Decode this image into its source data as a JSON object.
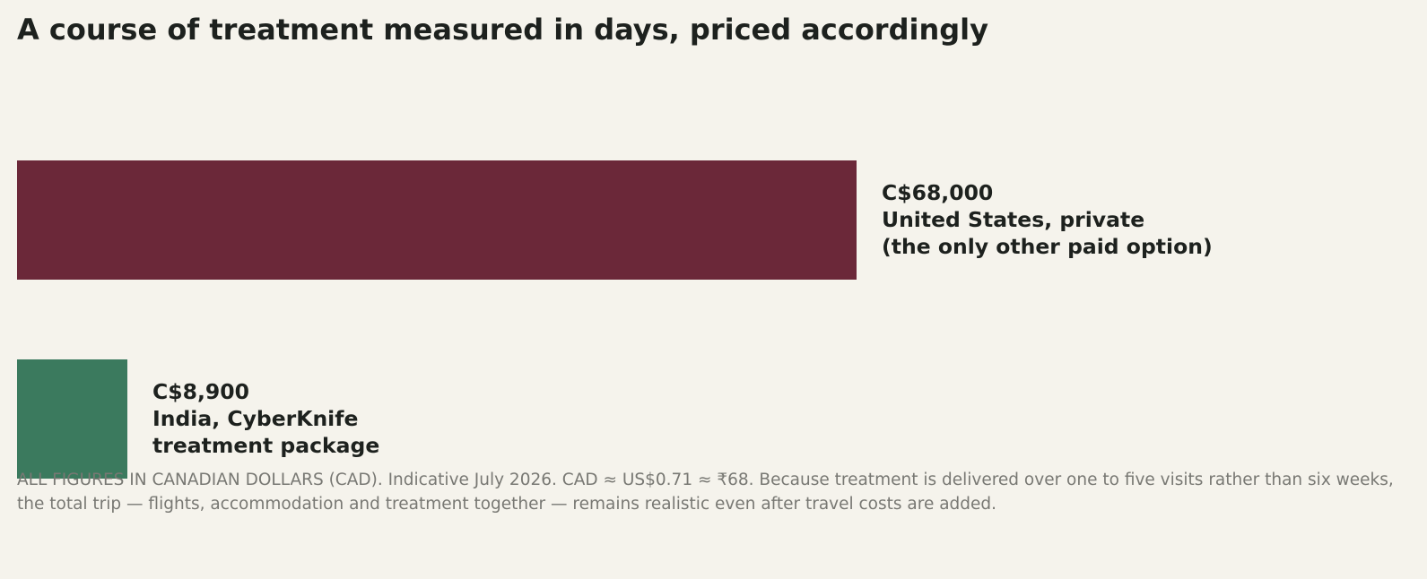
{
  "chart_data": {
    "type": "bar",
    "orientation": "horizontal",
    "title": "A course of treatment measured in days, priced accordingly",
    "unit": "CAD",
    "categories": [
      "United States, private",
      "India, CyberKnife treatment package"
    ],
    "values": [
      68000,
      8900
    ],
    "bars": [
      {
        "value": 68000,
        "value_label": "C$68,000",
        "label_lines": [
          "United States, private",
          "(the only other paid option)"
        ],
        "color": "#6b2839"
      },
      {
        "value": 8900,
        "value_label": "C$8,900",
        "label_lines": [
          "India, CyberKnife",
          "treatment package"
        ],
        "color": "#3b7a5e"
      }
    ],
    "xlim": [
      0,
      68000
    ],
    "grid": false,
    "legend": "none"
  },
  "footnote": "ALL FIGURES IN CANADIAN DOLLARS (CAD). Indicative July 2026. CAD ≈ US$0.71 ≈ ₹68. Because treatment is delivered over one to five visits rather than six weeks, the total trip — flights, accommodation and treatment together — remains realistic even after travel costs are added."
}
